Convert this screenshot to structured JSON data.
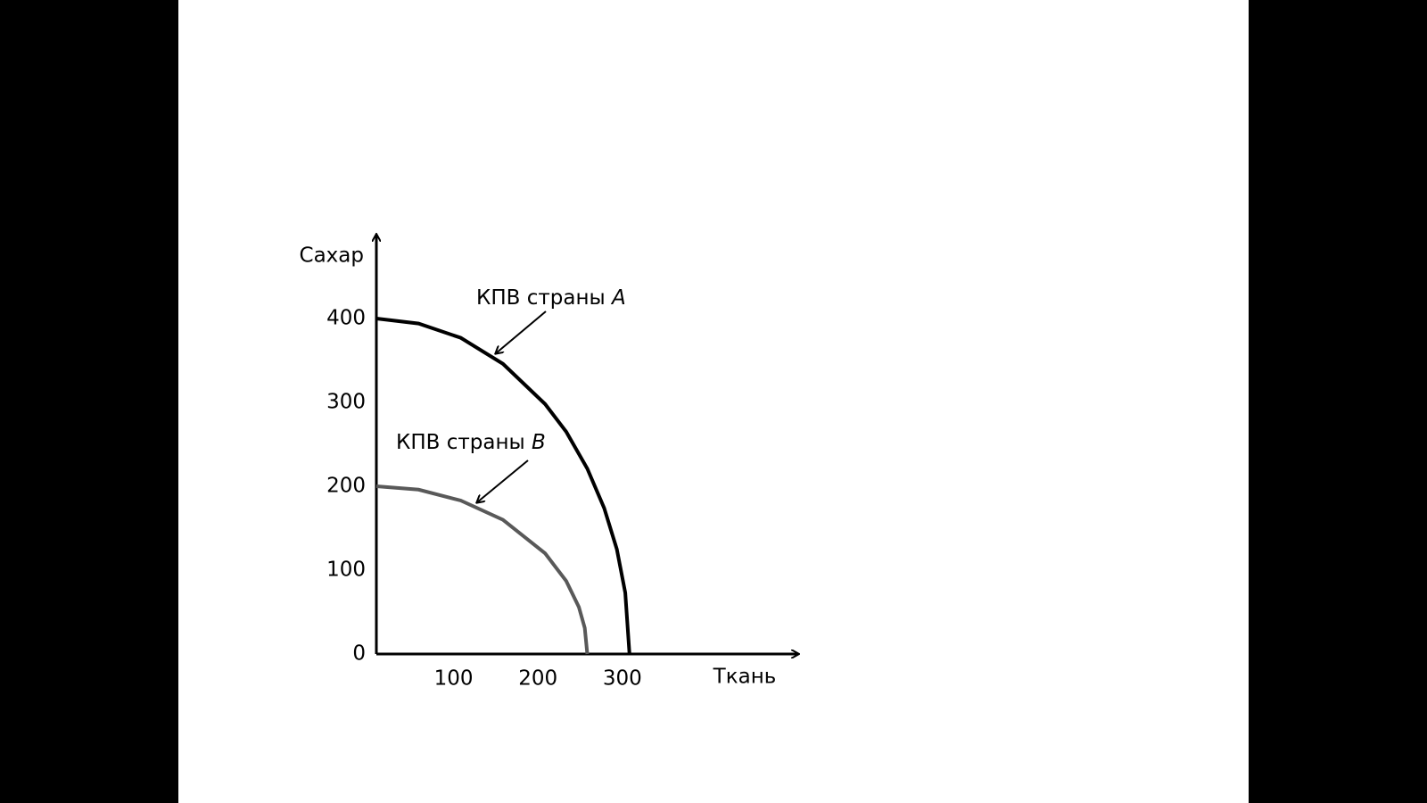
{
  "chart_data": {
    "type": "line",
    "x_label": "Ткань",
    "y_label": "Сахар",
    "xlim": [
      0,
      500
    ],
    "ylim": [
      0,
      500
    ],
    "xticks": [
      100,
      200,
      300
    ],
    "yticks": [
      0,
      100,
      200,
      300,
      400
    ],
    "grid": false,
    "series": [
      {
        "name": "КПВ страны A",
        "color": "#000000",
        "x": [
          0,
          50,
          100,
          150,
          200,
          225,
          250,
          270,
          285,
          295,
          300
        ],
        "values": [
          400,
          394,
          377,
          346,
          298,
          265,
          221,
          174,
          125,
          73,
          0
        ]
      },
      {
        "name": "КПВ страны B",
        "color": "#595959",
        "x": [
          0,
          50,
          100,
          150,
          200,
          225,
          240,
          247,
          250
        ],
        "values": [
          200,
          196,
          183,
          160,
          120,
          87,
          56,
          31,
          0
        ]
      }
    ]
  }
}
